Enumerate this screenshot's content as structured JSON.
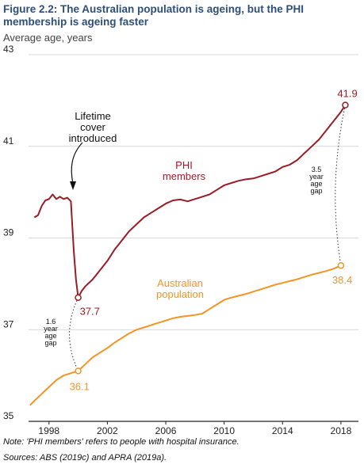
{
  "title": "Figure 2.2: The Australian population is ageing, but the PHI membership is ageing faster",
  "subtitle": "Average age, years",
  "notes": {
    "note": "Note: 'PHI members' refers to people with hospital insurance.",
    "sources": "Sources: ABS (2019c) and APRA (2019a)."
  },
  "colors": {
    "phi": "#9b1c26",
    "aus": "#f39425",
    "title": "#2d4f7a",
    "grid": "#cccccc"
  },
  "chart_data": {
    "type": "line",
    "ylim": [
      35,
      43
    ],
    "xlim": [
      1996.6,
      2019.2
    ],
    "yticks": [
      "35",
      "37",
      "39",
      "41",
      "43"
    ],
    "xticks": [
      "1998",
      "2002",
      "2006",
      "2010",
      "2014",
      "2018"
    ],
    "series": [
      {
        "name": "PHI members",
        "label_lines": [
          "PHI",
          "members"
        ],
        "x": [
          1997.0,
          1997.25,
          1997.5,
          1997.75,
          1998.0,
          1998.25,
          1998.5,
          1998.75,
          1999.0,
          1999.25,
          1999.5,
          1999.7,
          1999.85,
          2000.0,
          2000.25,
          2000.5,
          2001.0,
          2001.5,
          2002.0,
          2002.5,
          2003.0,
          2003.5,
          2004.0,
          2004.5,
          2005.0,
          2005.5,
          2006.0,
          2006.5,
          2007.0,
          2007.5,
          2008.0,
          2008.5,
          2009.0,
          2009.5,
          2010.0,
          2010.5,
          2011.0,
          2011.5,
          2012.0,
          2012.5,
          2013.0,
          2013.5,
          2014.0,
          2014.5,
          2015.0,
          2015.5,
          2016.0,
          2016.5,
          2017.0,
          2017.5,
          2018.0,
          2018.3
        ],
        "y": [
          39.45,
          39.5,
          39.7,
          39.82,
          39.85,
          39.95,
          39.85,
          39.9,
          39.85,
          39.88,
          39.8,
          38.7,
          38.1,
          37.7,
          37.85,
          37.95,
          38.1,
          38.3,
          38.5,
          38.75,
          38.95,
          39.15,
          39.3,
          39.45,
          39.55,
          39.65,
          39.75,
          39.82,
          39.84,
          39.8,
          39.85,
          39.9,
          39.95,
          40.05,
          40.15,
          40.2,
          40.25,
          40.28,
          40.3,
          40.35,
          40.4,
          40.45,
          40.55,
          40.6,
          40.7,
          40.85,
          41.0,
          41.15,
          41.35,
          41.55,
          41.75,
          41.9
        ],
        "start_label": "37.7",
        "end_label": "41.9"
      },
      {
        "name": "Australian population",
        "label_lines": [
          "Australian",
          "population"
        ],
        "x": [
          1996.7,
          1997.0,
          1997.5,
          1998.0,
          1998.5,
          1999.0,
          1999.5,
          2000.0,
          2000.5,
          2001.0,
          2001.5,
          2002.0,
          2002.5,
          2003.0,
          2003.5,
          2004.0,
          2004.5,
          2005.0,
          2005.5,
          2006.0,
          2006.5,
          2007.0,
          2007.5,
          2008.0,
          2008.5,
          2009.0,
          2009.5,
          2010.0,
          2010.5,
          2011.0,
          2011.5,
          2012.0,
          2012.5,
          2013.0,
          2013.5,
          2014.0,
          2014.5,
          2015.0,
          2015.5,
          2016.0,
          2016.5,
          2017.0,
          2017.5,
          2018.0
        ],
        "y": [
          35.35,
          35.45,
          35.6,
          35.75,
          35.9,
          36.0,
          36.05,
          36.1,
          36.25,
          36.4,
          36.5,
          36.6,
          36.72,
          36.82,
          36.92,
          37.0,
          37.05,
          37.1,
          37.15,
          37.2,
          37.25,
          37.28,
          37.3,
          37.32,
          37.35,
          37.45,
          37.55,
          37.65,
          37.7,
          37.74,
          37.78,
          37.83,
          37.88,
          37.93,
          37.98,
          38.02,
          38.06,
          38.1,
          38.15,
          38.2,
          38.24,
          38.28,
          38.33,
          38.4
        ],
        "start_label": "36.1",
        "end_label": "38.4"
      }
    ],
    "annotations": {
      "lifetime_cover": [
        "Lifetime",
        "cover",
        "introduced"
      ],
      "gap_2000": [
        "1.6",
        "year",
        "age",
        "gap"
      ],
      "gap_2018": [
        "3.5",
        "year",
        "age",
        "gap"
      ]
    }
  }
}
